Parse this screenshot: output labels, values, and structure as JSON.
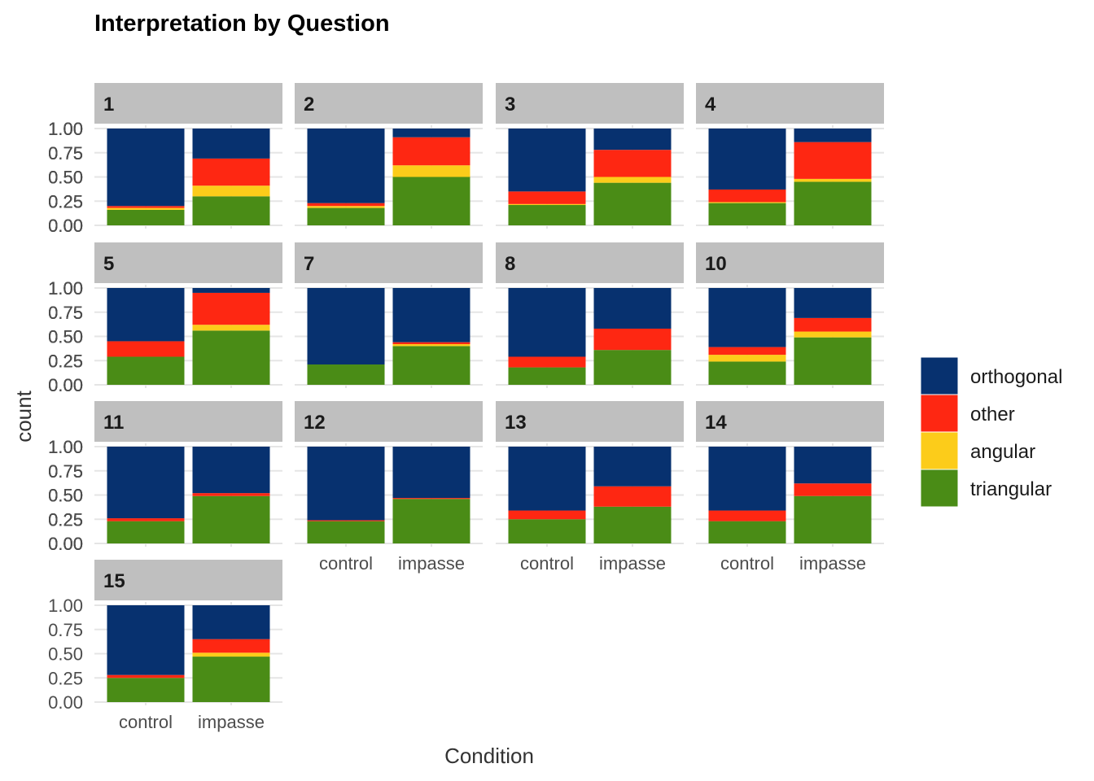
{
  "chart_data": {
    "type": "bar",
    "stacked": true,
    "position": "fill",
    "title": "Interpretation by Question",
    "xlabel": "Condition",
    "ylabel": "count",
    "ylim": [
      0,
      1
    ],
    "y_ticks": [
      "0.00",
      "0.25",
      "0.50",
      "0.75",
      "1.00"
    ],
    "categories": [
      "control",
      "impasse"
    ],
    "grid": true,
    "legend_position": "right",
    "legend": [
      {
        "name": "orthogonal",
        "color": "#07316F"
      },
      {
        "name": "other",
        "color": "#FE2712"
      },
      {
        "name": "angular",
        "color": "#FCCC1A"
      },
      {
        "name": "triangular",
        "color": "#4A8C16"
      }
    ],
    "stack_order_bottom_to_top": [
      "triangular",
      "angular",
      "other",
      "orthogonal"
    ],
    "panels": [
      {
        "label": "1",
        "values": {
          "control": {
            "triangular": 0.16,
            "angular": 0.02,
            "other": 0.02,
            "orthogonal": 0.8
          },
          "impasse": {
            "triangular": 0.3,
            "angular": 0.11,
            "other": 0.28,
            "orthogonal": 0.31
          }
        }
      },
      {
        "label": "2",
        "values": {
          "control": {
            "triangular": 0.18,
            "angular": 0.02,
            "other": 0.03,
            "orthogonal": 0.77
          },
          "impasse": {
            "triangular": 0.5,
            "angular": 0.12,
            "other": 0.29,
            "orthogonal": 0.09
          }
        }
      },
      {
        "label": "3",
        "values": {
          "control": {
            "triangular": 0.21,
            "angular": 0.01,
            "other": 0.13,
            "orthogonal": 0.65
          },
          "impasse": {
            "triangular": 0.44,
            "angular": 0.06,
            "other": 0.28,
            "orthogonal": 0.22
          }
        }
      },
      {
        "label": "4",
        "values": {
          "control": {
            "triangular": 0.23,
            "angular": 0.01,
            "other": 0.13,
            "orthogonal": 0.63
          },
          "impasse": {
            "triangular": 0.45,
            "angular": 0.03,
            "other": 0.38,
            "orthogonal": 0.14
          }
        }
      },
      {
        "label": "5",
        "values": {
          "control": {
            "triangular": 0.29,
            "angular": 0.0,
            "other": 0.16,
            "orthogonal": 0.55
          },
          "impasse": {
            "triangular": 0.56,
            "angular": 0.06,
            "other": 0.33,
            "orthogonal": 0.05
          }
        }
      },
      {
        "label": "7",
        "values": {
          "control": {
            "triangular": 0.21,
            "angular": 0.0,
            "other": 0.0,
            "orthogonal": 0.79
          },
          "impasse": {
            "triangular": 0.4,
            "angular": 0.02,
            "other": 0.02,
            "orthogonal": 0.56
          }
        }
      },
      {
        "label": "8",
        "values": {
          "control": {
            "triangular": 0.18,
            "angular": 0.0,
            "other": 0.11,
            "orthogonal": 0.71
          },
          "impasse": {
            "triangular": 0.36,
            "angular": 0.0,
            "other": 0.22,
            "orthogonal": 0.42
          }
        }
      },
      {
        "label": "10",
        "values": {
          "control": {
            "triangular": 0.24,
            "angular": 0.07,
            "other": 0.08,
            "orthogonal": 0.61
          },
          "impasse": {
            "triangular": 0.49,
            "angular": 0.06,
            "other": 0.14,
            "orthogonal": 0.31
          }
        }
      },
      {
        "label": "11",
        "values": {
          "control": {
            "triangular": 0.23,
            "angular": 0.0,
            "other": 0.03,
            "orthogonal": 0.74
          },
          "impasse": {
            "triangular": 0.49,
            "angular": 0.0,
            "other": 0.03,
            "orthogonal": 0.48
          }
        }
      },
      {
        "label": "12",
        "values": {
          "control": {
            "triangular": 0.23,
            "angular": 0.0,
            "other": 0.01,
            "orthogonal": 0.76
          },
          "impasse": {
            "triangular": 0.46,
            "angular": 0.0,
            "other": 0.01,
            "orthogonal": 0.53
          }
        }
      },
      {
        "label": "13",
        "values": {
          "control": {
            "triangular": 0.25,
            "angular": 0.0,
            "other": 0.09,
            "orthogonal": 0.66
          },
          "impasse": {
            "triangular": 0.38,
            "angular": 0.0,
            "other": 0.21,
            "orthogonal": 0.41
          }
        }
      },
      {
        "label": "14",
        "values": {
          "control": {
            "triangular": 0.23,
            "angular": 0.0,
            "other": 0.11,
            "orthogonal": 0.66
          },
          "impasse": {
            "triangular": 0.49,
            "angular": 0.0,
            "other": 0.13,
            "orthogonal": 0.38
          }
        }
      },
      {
        "label": "15",
        "values": {
          "control": {
            "triangular": 0.25,
            "angular": 0.0,
            "other": 0.03,
            "orthogonal": 0.72
          },
          "impasse": {
            "triangular": 0.47,
            "angular": 0.04,
            "other": 0.14,
            "orthogonal": 0.35
          }
        }
      }
    ]
  }
}
